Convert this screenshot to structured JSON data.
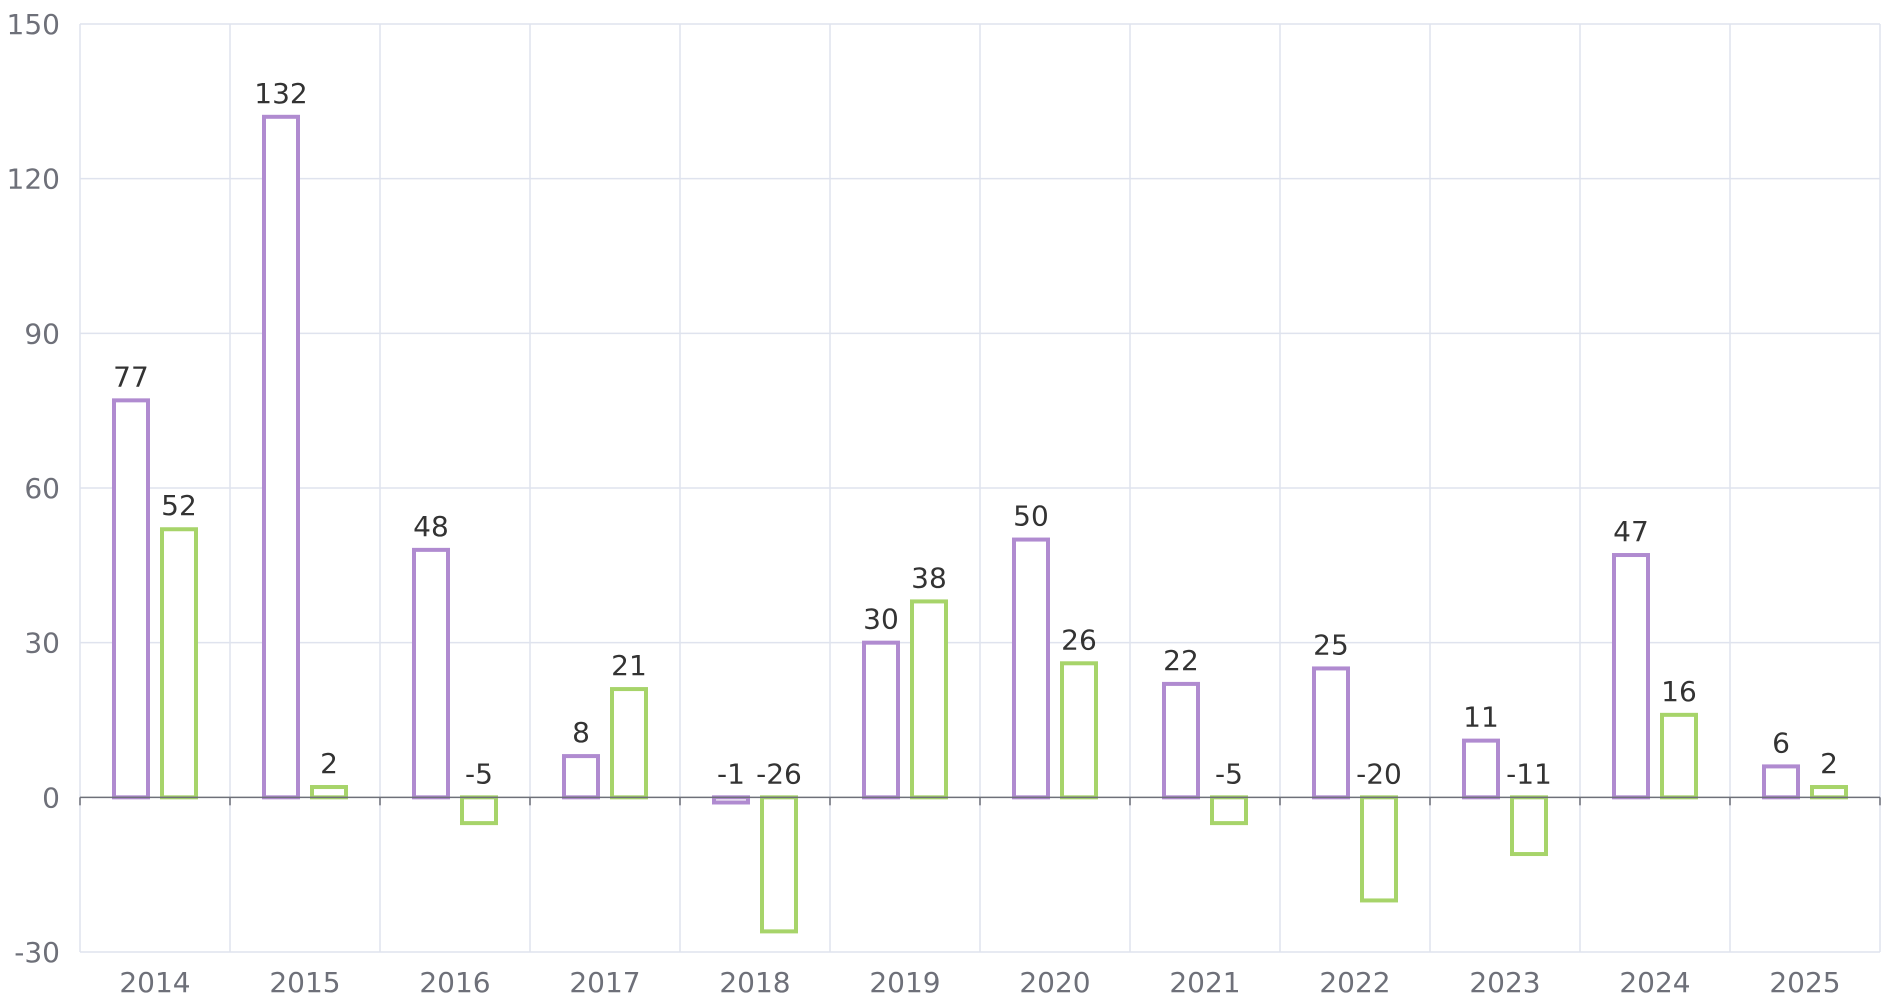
{
  "chart_data": {
    "type": "bar",
    "categories": [
      "2014",
      "2015",
      "2016",
      "2017",
      "2018",
      "2019",
      "2020",
      "2021",
      "2022",
      "2023",
      "2024",
      "2025"
    ],
    "series": [
      {
        "color": "#b08bd0",
        "values": [
          77,
          132,
          48,
          8,
          -1,
          30,
          50,
          22,
          25,
          11,
          47,
          6
        ]
      },
      {
        "color": "#a7d46a",
        "values": [
          52,
          2,
          -5,
          21,
          -26,
          38,
          26,
          -5,
          -20,
          -11,
          16,
          2
        ]
      }
    ],
    "ylim": [
      -30,
      150
    ],
    "yticks": [
      -30,
      0,
      30,
      60,
      90,
      120,
      150
    ],
    "title": "",
    "xlabel": "",
    "ylabel": "",
    "grid": true,
    "legend": "none"
  }
}
